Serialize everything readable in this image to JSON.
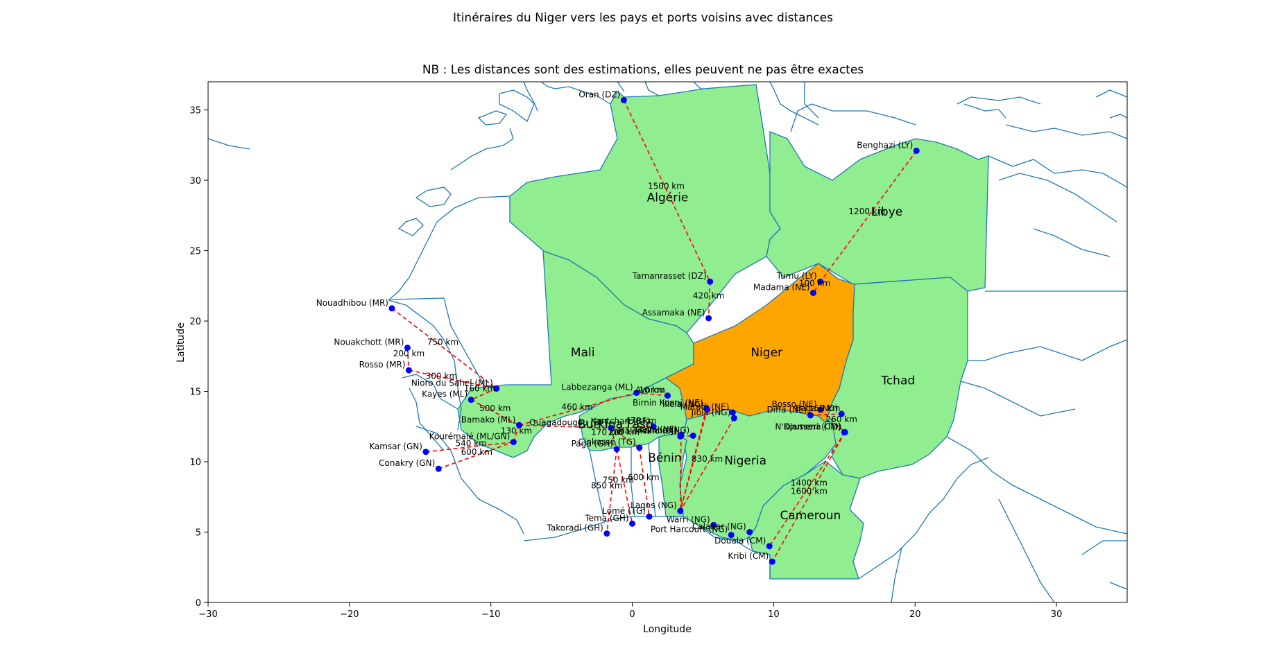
{
  "figure": {
    "suptitle": "Itinéraires du Niger vers les pays et ports voisins avec distances",
    "subtitle": "NB : Les distances sont des estimations, elles peuvent ne pas être exactes"
  },
  "colors": {
    "niger": "#FFA500",
    "neighbors": "#90EE90",
    "borders": "#1f77b4",
    "route": "#ff0000",
    "point": "#0000ff"
  },
  "chart_data": {
    "type": "map",
    "xlabel": "Longitude",
    "ylabel": "Latitude",
    "xlim": [
      -30,
      35
    ],
    "ylim": [
      0,
      37
    ],
    "xticks": [
      -30,
      -20,
      -10,
      0,
      10,
      20,
      30
    ],
    "yticks": [
      0,
      5,
      10,
      15,
      20,
      25,
      30,
      35
    ],
    "tick_labels_x": [
      "−30",
      "−20",
      "−10",
      "0",
      "10",
      "20",
      "30"
    ],
    "tick_labels_y": [
      "0",
      "5",
      "10",
      "15",
      "20",
      "25",
      "30",
      "35"
    ],
    "countries": [
      {
        "name": "Niger",
        "lon": 9.5,
        "lat": 17.5
      },
      {
        "name": "Algérie",
        "lon": 2.5,
        "lat": 28.5
      },
      {
        "name": "Libye",
        "lon": 18.0,
        "lat": 27.5
      },
      {
        "name": "Mali",
        "lon": -3.5,
        "lat": 17.5
      },
      {
        "name": "Tchad",
        "lon": 18.8,
        "lat": 15.5
      },
      {
        "name": "Nigeria",
        "lon": 8.0,
        "lat": 9.8
      },
      {
        "name": "Bénin",
        "lon": 2.3,
        "lat": 10.0
      },
      {
        "name": "Cameroun",
        "lon": 12.6,
        "lat": 5.9
      },
      {
        "name": "Burkina Faso",
        "lon": -1.2,
        "lat": 12.4
      }
    ],
    "cities": [
      {
        "name": "Oran (DZ)",
        "lon": -0.6,
        "lat": 35.7
      },
      {
        "name": "Tamanrasset (DZ)",
        "lon": 5.5,
        "lat": 22.8
      },
      {
        "name": "Assamaka (NE)",
        "lon": 5.4,
        "lat": 20.2
      },
      {
        "name": "Benghazi (LY)",
        "lon": 20.1,
        "lat": 32.1
      },
      {
        "name": "Tumu (LY)",
        "lon": 13.3,
        "lat": 22.8
      },
      {
        "name": "Madama (NE)",
        "lon": 12.8,
        "lat": 22.0
      },
      {
        "name": "Nouadhibou (MR)",
        "lon": -17.0,
        "lat": 20.9
      },
      {
        "name": "Nouakchott (MR)",
        "lon": -15.9,
        "lat": 18.1
      },
      {
        "name": "Rosso (MR)",
        "lon": -15.8,
        "lat": 16.5
      },
      {
        "name": "Nioro du Sahel (ML)",
        "lon": -9.6,
        "lat": 15.2
      },
      {
        "name": "Kayes (ML)",
        "lon": -11.4,
        "lat": 14.4
      },
      {
        "name": "Bamako (ML)",
        "lon": -8.0,
        "lat": 12.6
      },
      {
        "name": "Kourémalé (ML/GN)",
        "lon": -8.4,
        "lat": 11.4
      },
      {
        "name": "Kamsar (GN)",
        "lon": -14.6,
        "lat": 10.7
      },
      {
        "name": "Conakry (GN)",
        "lon": -13.7,
        "lat": 9.5
      },
      {
        "name": "Labbezanga (ML)",
        "lon": 0.3,
        "lat": 14.9
      },
      {
        "name": "Ayorou",
        "lon": 2.5,
        "lat": 14.7
      },
      {
        "name": "Ouagadougou (BF)",
        "lon": -1.5,
        "lat": 12.4
      },
      {
        "name": "Kantchari (BF)",
        "lon": 1.5,
        "lat": 12.5
      },
      {
        "name": "Birnin Konni (NE)",
        "lon": 5.25,
        "lat": 13.8
      },
      {
        "name": "Illela (NG)",
        "lon": 5.3,
        "lat": 13.7
      },
      {
        "name": "Maradi (NE)",
        "lon": 7.1,
        "lat": 13.5
      },
      {
        "name": "Jibia (NG)",
        "lon": 7.2,
        "lat": 13.1
      },
      {
        "name": "Gaya (NE)",
        "lon": 3.45,
        "lat": 11.9
      },
      {
        "name": "Malanville (BJ)",
        "lon": 3.4,
        "lat": 11.8
      },
      {
        "name": "Kamba (NG)",
        "lon": 4.3,
        "lat": 11.85
      },
      {
        "name": "Diffa (NE)",
        "lon": 12.6,
        "lat": 13.3
      },
      {
        "name": "Bosso (NE)",
        "lon": 13.3,
        "lat": 13.7
      },
      {
        "name": "Baga (NG)",
        "lon": 14.8,
        "lat": 13.4
      },
      {
        "name": "N'Djamena (TD)",
        "lon": 15.05,
        "lat": 12.1
      },
      {
        "name": "Kousseri (CM)",
        "lon": 15.0,
        "lat": 12.1
      },
      {
        "name": "Paga (GH)",
        "lon": -1.1,
        "lat": 10.9
      },
      {
        "name": "Cinkassé (TG)",
        "lon": 0.5,
        "lat": 11.0
      },
      {
        "name": "Takoradi (GH)",
        "lon": -1.8,
        "lat": 4.9
      },
      {
        "name": "Tema (GH)",
        "lon": 0.0,
        "lat": 5.6
      },
      {
        "name": "Lomé (TG)",
        "lon": 1.2,
        "lat": 6.1
      },
      {
        "name": "Lagos (NG)",
        "lon": 3.4,
        "lat": 6.5
      },
      {
        "name": "Warri (NG)",
        "lon": 5.75,
        "lat": 5.5
      },
      {
        "name": "Port Harcourt (NG)",
        "lon": 7.0,
        "lat": 4.8
      },
      {
        "name": "Calabar (NG)",
        "lon": 8.3,
        "lat": 5.0
      },
      {
        "name": "Douala (CM)",
        "lon": 9.7,
        "lat": 4.0
      },
      {
        "name": "Kribi (CM)",
        "lon": 9.9,
        "lat": 2.9
      }
    ],
    "routes": [
      {
        "from": "Oran (DZ)",
        "to": "Tamanrasset (DZ)",
        "label": "1500 km",
        "lon": 2.4,
        "lat": 29.4
      },
      {
        "from": "Tamanrasset (DZ)",
        "to": "Assamaka (NE)",
        "label": "420 km",
        "lon": 5.4,
        "lat": 21.6
      },
      {
        "from": "Benghazi (LY)",
        "to": "Tumu (LY)",
        "label": "1200 km",
        "lon": 16.6,
        "lat": 27.6
      },
      {
        "from": "Tumu (LY)",
        "to": "Madama (NE)",
        "label": "100 km",
        "lon": 12.9,
        "lat": 22.5
      },
      {
        "from": "Nouadhibou (MR)",
        "to": "Nioro du Sahel (ML)",
        "label": "750 km",
        "lon": -13.4,
        "lat": 18.3
      },
      {
        "from": "Nouakchott (MR)",
        "to": "Rosso (MR)",
        "label": "200 km",
        "lon": -15.8,
        "lat": 17.5
      },
      {
        "from": "Rosso (MR)",
        "to": "Nioro du Sahel (ML)",
        "label": "300 km",
        "lon": -13.5,
        "lat": 15.9
      },
      {
        "from": "Nioro du Sahel (ML)",
        "to": "Kayes (ML)",
        "label": "160 km",
        "lon": -10.8,
        "lat": 15.0
      },
      {
        "from": "Kayes (ML)",
        "to": "Bamako (ML)",
        "label": "500 km",
        "lon": -9.7,
        "lat": 13.6
      },
      {
        "from": "Bamako (ML)",
        "to": "Kourémalé (ML/GN)",
        "label": "130 km",
        "lon": -8.2,
        "lat": 12.0
      },
      {
        "from": "Kamsar (GN)",
        "to": "Kourémalé (ML/GN)",
        "label": "540 km",
        "lon": -11.4,
        "lat": 11.1
      },
      {
        "from": "Conakry (GN)",
        "to": "Kourémalé (ML/GN)",
        "label": "600 km",
        "lon": -11.0,
        "lat": 10.5
      },
      {
        "from": "Bamako (ML)",
        "to": "Labbezanga (ML)",
        "label": "460 km",
        "lon": -3.9,
        "lat": 13.7
      },
      {
        "from": "Labbezanga (ML)",
        "to": "Ayorou",
        "label": "10 km",
        "lon": 1.4,
        "lat": 14.9
      },
      {
        "from": "Bamako (ML)",
        "to": "Ouagadougou (BF)",
        "label": "",
        "lon": -4.8,
        "lat": 12.5
      },
      {
        "from": "Ouagadougou (BF)",
        "to": "Kantchari (BF)",
        "label": "470 km",
        "lon": 0.6,
        "lat": 12.7
      },
      {
        "from": "Ouagadougou (BF)",
        "to": "Paga (GH)",
        "label": "170 km",
        "lon": -1.8,
        "lat": 11.9
      },
      {
        "from": "Ouagadougou (BF)",
        "to": "Cinkassé (TG)",
        "label": "200 km",
        "lon": -0.6,
        "lat": 11.9
      },
      {
        "from": "Paga (GH)",
        "to": "Takoradi (GH)",
        "label": "850 km",
        "lon": -1.8,
        "lat": 8.1
      },
      {
        "from": "Paga (GH)",
        "to": "Tema (GH)",
        "label": "750 km",
        "lon": -1.0,
        "lat": 8.5
      },
      {
        "from": "Cinkassé (TG)",
        "to": "Lomé (TG)",
        "label": "600 km",
        "lon": 0.8,
        "lat": 8.7
      },
      {
        "from": "Birnin Konni (NE)",
        "to": "Lagos (NG)",
        "label": "",
        "lon": 4.3,
        "lat": 10.0
      },
      {
        "from": "Illela (NG)",
        "to": "Lagos (NG)",
        "label": "",
        "lon": 4.5,
        "lat": 10.0
      },
      {
        "from": "Jibia (NG)",
        "to": "Lagos (NG)",
        "label": "830 km",
        "lon": 5.3,
        "lat": 10.0
      },
      {
        "from": "Gaya (NE)",
        "to": "Lagos (NG)",
        "label": "",
        "lon": 3.4,
        "lat": 9.0
      },
      {
        "from": "Malanville (BJ)",
        "to": "Kamba (NG)",
        "label": "",
        "lon": 3.9,
        "lat": 11.9
      },
      {
        "from": "Diffa (NE)",
        "to": "Baga (NG)",
        "label": "150 km",
        "lon": 13.6,
        "lat": 13.6
      },
      {
        "from": "Bosso (NE)",
        "to": "N'Djamena (TD)",
        "label": "260 km",
        "lon": 14.8,
        "lat": 12.8
      },
      {
        "from": "N'Djamena (TD)",
        "to": "Douala (CM)",
        "label": "1400 km",
        "lon": 12.5,
        "lat": 8.3
      },
      {
        "from": "N'Djamena (TD)",
        "to": "Kribi (CM)",
        "label": "1600 km",
        "lon": 12.5,
        "lat": 7.7
      }
    ]
  }
}
